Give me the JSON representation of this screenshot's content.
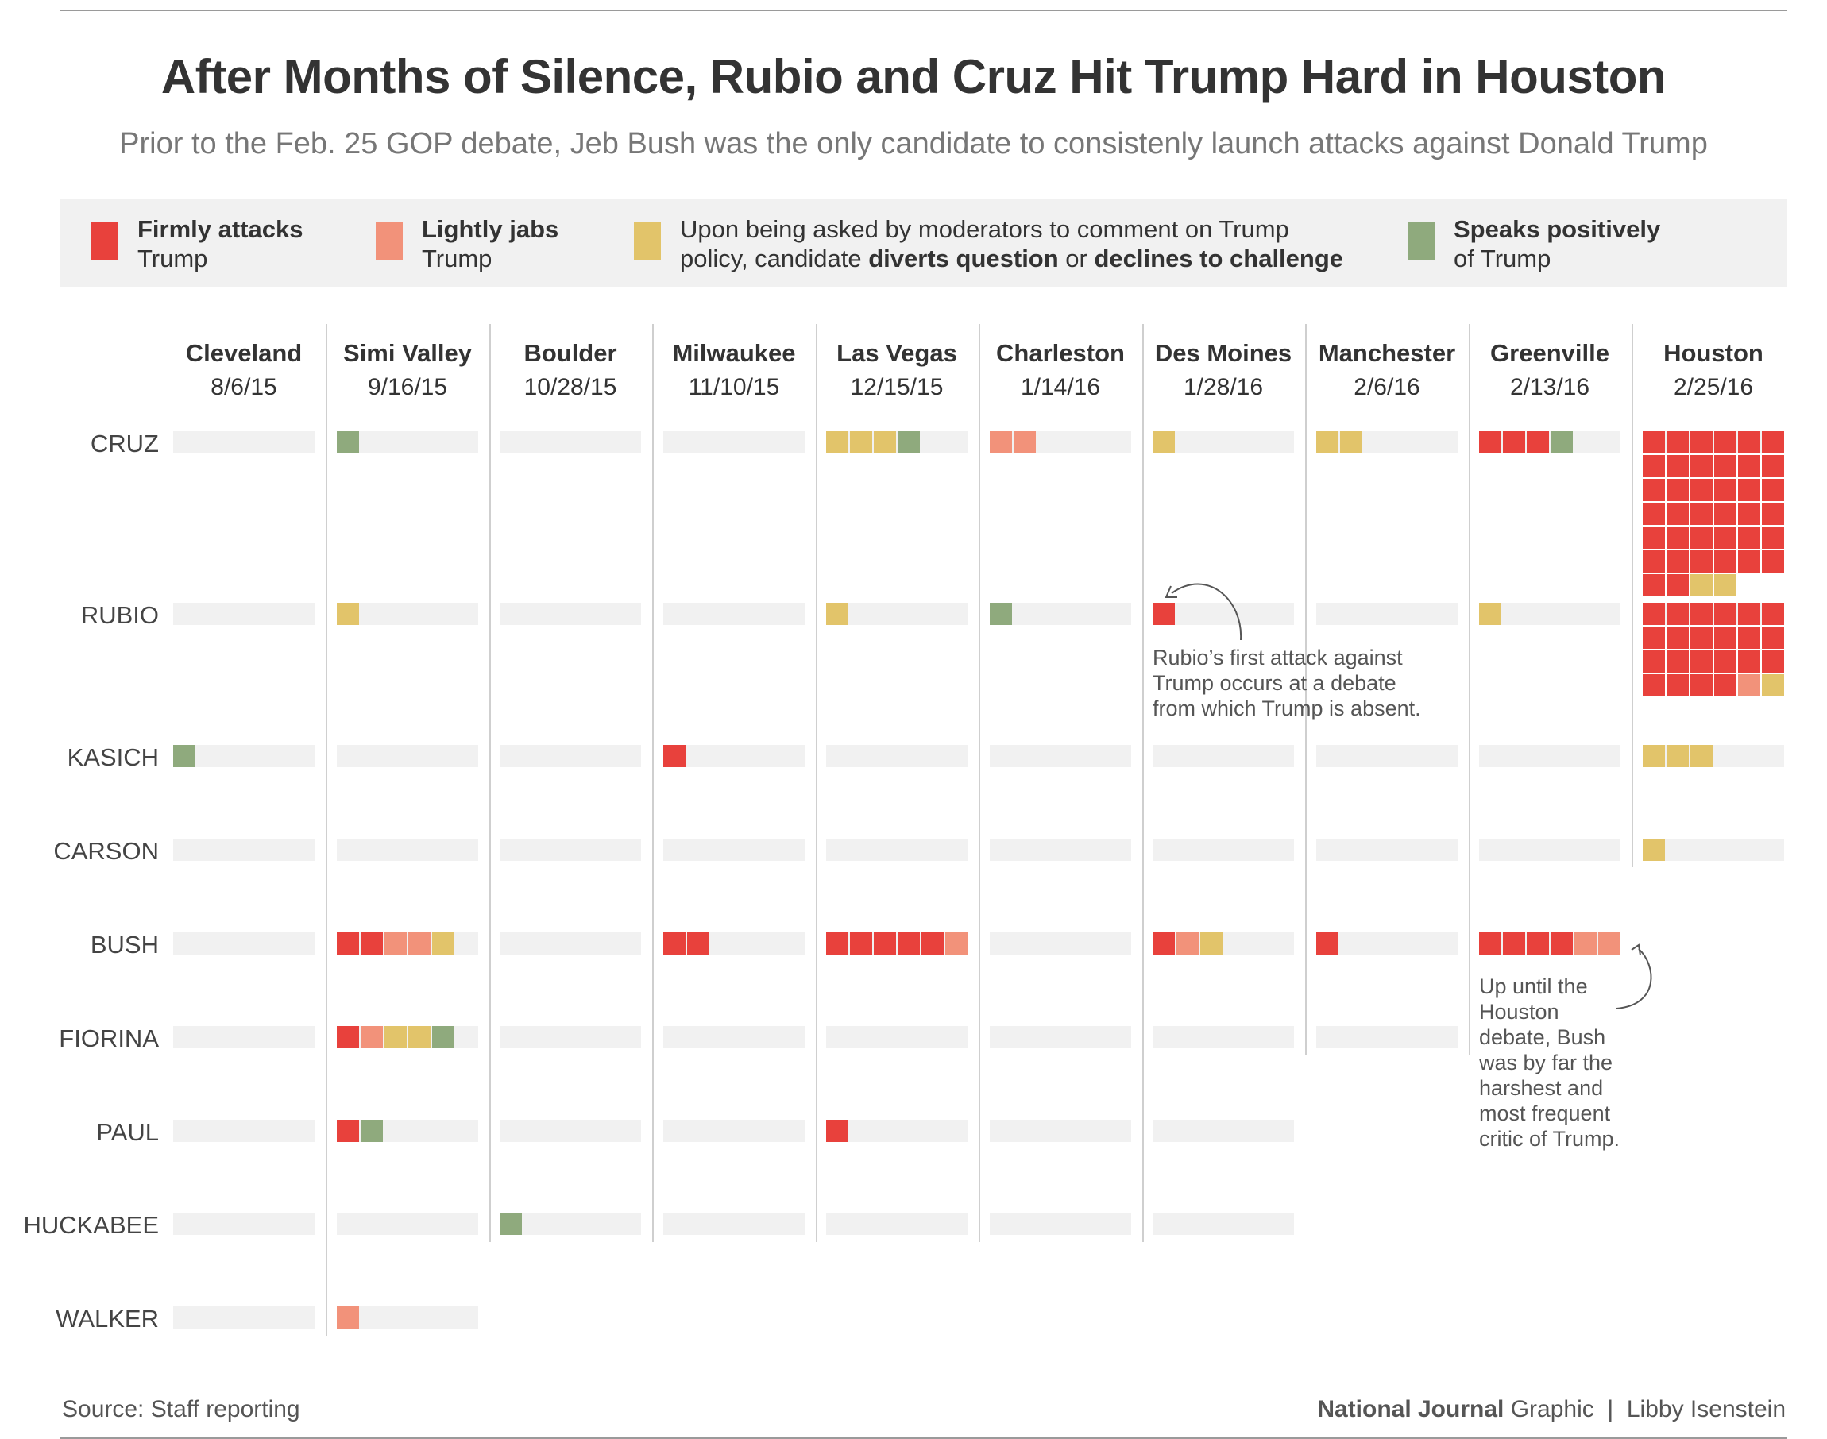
{
  "title": "After Months of Silence, Rubio and Cruz Hit Trump Hard in Houston",
  "subtitle": "Prior to the Feb. 25 GOP debate, Jeb Bush was the only candidate to consistenly launch attacks against Donald Trump",
  "legend": {
    "firm": {
      "bold": "Firmly attacks",
      "rest": "Trump",
      "color": "#e8413c"
    },
    "light": {
      "bold": "Lightly jabs",
      "rest": "Trump",
      "color": "#f2927a"
    },
    "divert": {
      "line1": "Upon being asked by moderators to comment on Trump",
      "line2_pre": "policy, candidate ",
      "line2_b1": "diverts question",
      "line2_mid": " or ",
      "line2_b2": "declines to challenge",
      "color": "#e2c46a"
    },
    "positive": {
      "bold": "Speaks positively",
      "rest": "of Trump",
      "color": "#8faa7d"
    }
  },
  "footer": {
    "source": "Source: Staff reporting",
    "brand": "National Journal",
    "graphic": " Graphic  |  Libby Isenstein"
  },
  "chart_data": {
    "type": "table",
    "colors": {
      "F": "#e8413c",
      "L": "#f2927a",
      "D": "#e2c46a",
      "P": "#8faa7d",
      "track": "#f1f1f1",
      "divider": "#cfcfcf"
    },
    "key": {
      "F": "Firmly attacks Trump",
      "L": "Lightly jabs Trump",
      "D": "Diverts question or declines to challenge",
      "P": "Speaks positively of Trump"
    },
    "debates": [
      {
        "city": "Cleveland",
        "date": "8/6/15"
      },
      {
        "city": "Simi Valley",
        "date": "9/16/15"
      },
      {
        "city": "Boulder",
        "date": "10/28/15"
      },
      {
        "city": "Milwaukee",
        "date": "11/10/15"
      },
      {
        "city": "Las Vegas",
        "date": "12/15/15"
      },
      {
        "city": "Charleston",
        "date": "1/14/16"
      },
      {
        "city": "Des Moines",
        "date": "1/28/16"
      },
      {
        "city": "Manchester",
        "date": "2/6/16"
      },
      {
        "city": "Greenville",
        "date": "2/13/16"
      },
      {
        "city": "Houston",
        "date": "2/25/16"
      }
    ],
    "candidates": [
      {
        "name": "CRUZ",
        "debates": [
          "",
          "P",
          "",
          "",
          "DDDP",
          "LL",
          "D",
          "DD",
          "FFFP",
          "FFFFFFFFFFFFFFFFFFFFFFFFFFFFFFFFFFFFFFDD"
        ]
      },
      {
        "name": "RUBIO",
        "debates": [
          "",
          "D",
          "",
          "",
          "D",
          "P",
          "F",
          "",
          "D",
          "FFFFFFFFFFFFFFFFFFFFFFLD"
        ]
      },
      {
        "name": "KASICH",
        "debates": [
          "P",
          "",
          "",
          "F",
          "",
          "",
          "",
          "",
          "",
          "DDD"
        ]
      },
      {
        "name": "CARSON",
        "debates": [
          "",
          "",
          "",
          "",
          "",
          "",
          "",
          "",
          "",
          "D"
        ]
      },
      {
        "name": "BUSH",
        "debates": [
          "",
          "FFLLD",
          "",
          "FF",
          "FFFFFL",
          "",
          "FLD",
          "F",
          "FFFFLL",
          null
        ]
      },
      {
        "name": "FIORINA",
        "debates": [
          "",
          "FLDDP",
          "",
          "",
          "",
          "",
          "",
          "",
          null,
          null
        ]
      },
      {
        "name": "PAUL",
        "debates": [
          "",
          "FP",
          "",
          "",
          "F",
          "",
          "",
          null,
          null,
          null
        ]
      },
      {
        "name": "HUCKABEE",
        "debates": [
          "",
          "",
          "P",
          "",
          "",
          "",
          "",
          null,
          null,
          null
        ]
      },
      {
        "name": "WALKER",
        "debates": [
          "",
          "L",
          null,
          null,
          null,
          null,
          null,
          null,
          null,
          null
        ]
      }
    ],
    "annotations": [
      {
        "lines": [
          "Rubio’s first attack against",
          "Trump occurs at a debate",
          "from which Trump is absent."
        ]
      },
      {
        "lines": [
          "Up until the",
          "Houston",
          "debate, Bush",
          "was by far the",
          "harshest and",
          "most frequent",
          "critic of Trump."
        ]
      }
    ]
  }
}
